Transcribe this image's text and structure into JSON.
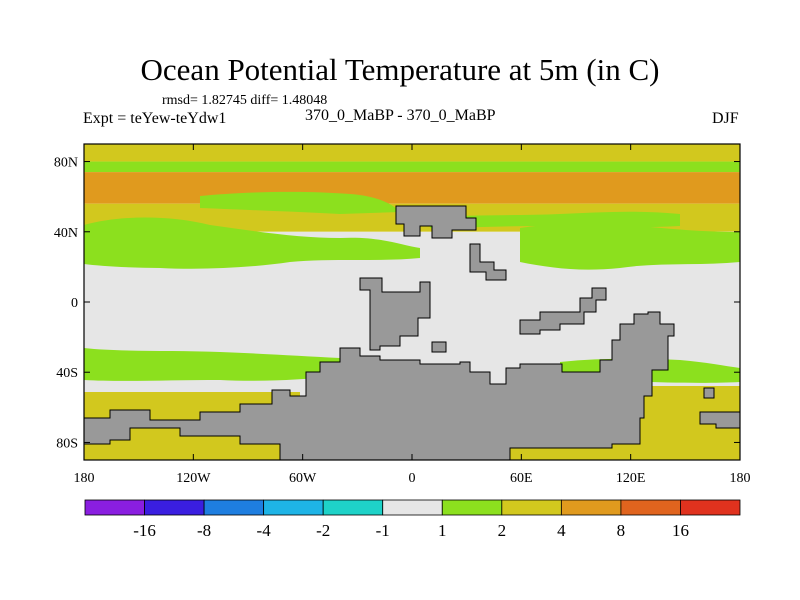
{
  "chart_data": {
    "type": "heatmap",
    "title": "Ocean Potential Temperature at 5m (in C)",
    "stats": "rmsd= 1.82745 diff= 1.48048",
    "experiment": "Expt = teYew-teYdw1",
    "cases": "370_0_MaBP - 370_0_MaBP",
    "season": "DJF",
    "x_ticks": [
      "180",
      "120W",
      "60W",
      "0",
      "60E",
      "120E",
      "180"
    ],
    "y_ticks": [
      "80N",
      "40N",
      "0",
      "40S",
      "80S"
    ],
    "x_range": [
      -180,
      180
    ],
    "y_range": [
      -90,
      90
    ],
    "colorbar": {
      "labels": [
        "-16",
        "-8",
        "-4",
        "-2",
        "-1",
        "1",
        "2",
        "4",
        "8",
        "16"
      ],
      "colors": [
        "#8a1ee0",
        "#3a1ee0",
        "#1e7ee0",
        "#1eb4e6",
        "#1ed2c8",
        "#e6e6e6",
        "#8ce01e",
        "#d2c81e",
        "#e09a1e",
        "#e0641e",
        "#e0321e"
      ]
    },
    "land_color": "#999999",
    "bands": [
      {
        "lat_top": 90,
        "lat_bottom": 80,
        "bin": "2 to 4",
        "color": "#d2c81e"
      },
      {
        "lat_top": 80,
        "lat_bottom": 74,
        "bin": "1 to 2",
        "color": "#8ce01e"
      },
      {
        "lat_top": 74,
        "lat_bottom": 56,
        "bin": "4 to 8",
        "color": "#e09a1e"
      },
      {
        "lat_top": 56,
        "lat_bottom": 40,
        "bin": "2 to 4",
        "color": "#d2c81e"
      },
      {
        "lat_top": 40,
        "lat_bottom": -54,
        "bin": "-1 to 1 / 1 to 2",
        "color": "#e6e6e6"
      },
      {
        "lat_top": -54,
        "lat_bottom": -90,
        "bin": "2 to 4",
        "color": "#d2c81e"
      }
    ]
  }
}
